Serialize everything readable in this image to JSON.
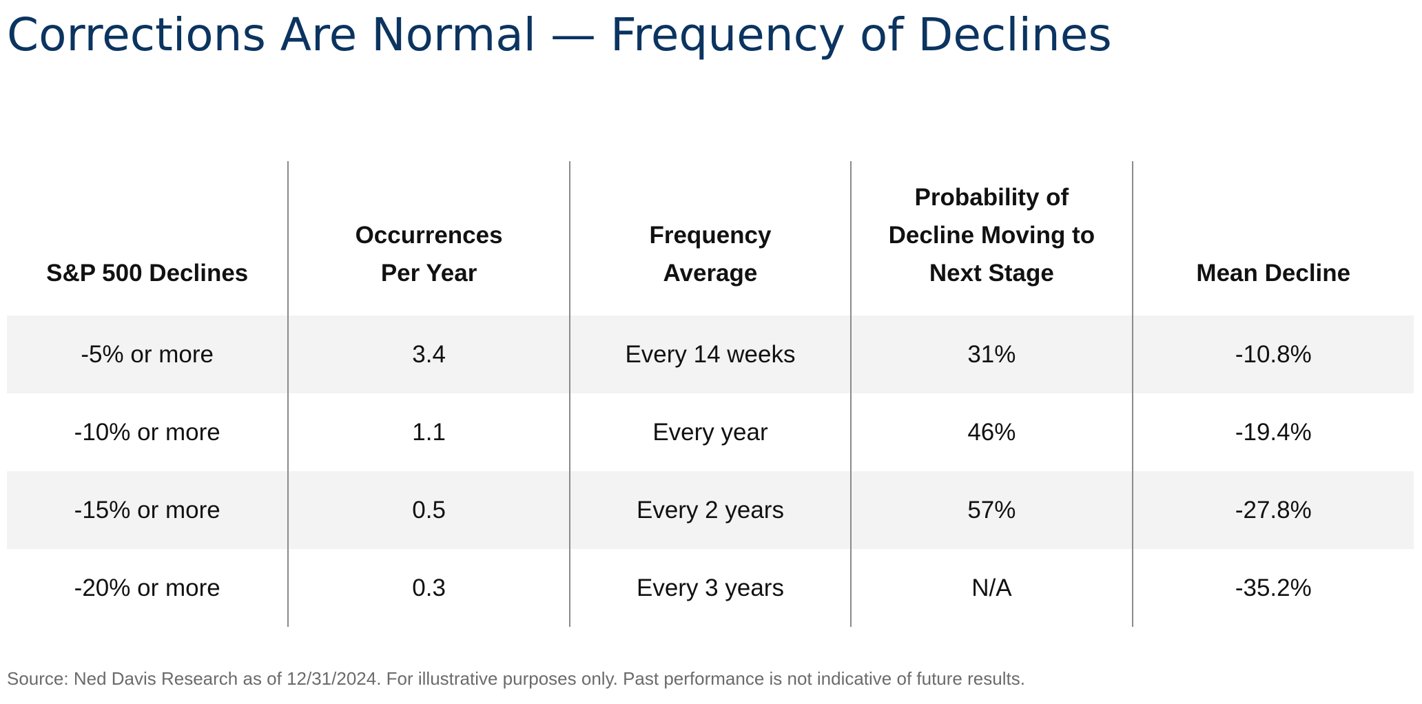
{
  "page": {
    "title": "Corrections Are Normal — Frequency of Declines",
    "source": "Source: Ned Davis Research as of 12/31/2024. For illustrative purposes only. Past performance is not indicative of future results."
  },
  "table": {
    "columns": [
      {
        "lines": [
          "S&P 500 Declines"
        ]
      },
      {
        "lines": [
          "Occurrences",
          "Per Year"
        ]
      },
      {
        "lines": [
          "Frequency",
          "Average"
        ]
      },
      {
        "lines": [
          "Probability of",
          "Decline Moving to",
          "Next Stage"
        ]
      },
      {
        "lines": [
          "Mean Decline"
        ]
      }
    ],
    "rows": [
      {
        "decline": "-5% or more",
        "occurrences": "3.4",
        "frequency": "Every 14 weeks",
        "probability": "31%",
        "mean": "-10.8%"
      },
      {
        "decline": "-10% or more",
        "occurrences": "1.1",
        "frequency": "Every year",
        "probability": "46%",
        "mean": "-19.4%"
      },
      {
        "decline": "-15% or more",
        "occurrences": "0.5",
        "frequency": "Every 2 years",
        "probability": "57%",
        "mean": "-27.8%"
      },
      {
        "decline": "-20% or more",
        "occurrences": "0.3",
        "frequency": "Every 3 years",
        "probability": "N/A",
        "mean": "-35.2%"
      }
    ]
  },
  "colors": {
    "title": "#0b3460",
    "row_shade": "#f3f3f3",
    "divider": "#8a8a8a",
    "source_text": "#6b6b6b"
  }
}
